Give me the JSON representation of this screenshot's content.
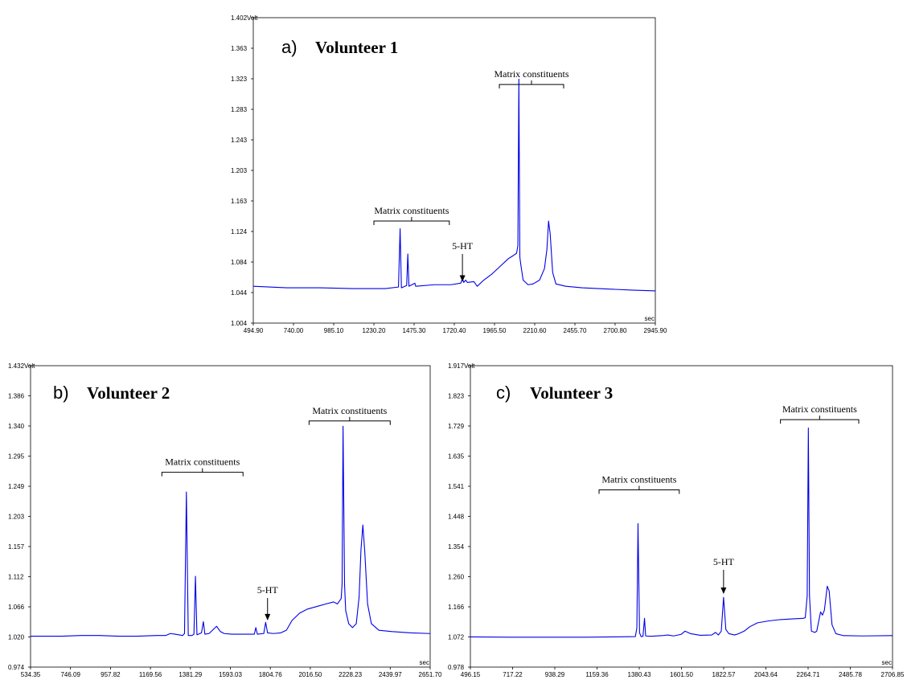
{
  "chart_data": [
    {
      "type": "line",
      "panel_label": "a)",
      "title": "Volunteer 1",
      "ylabel_unit": "Volt",
      "xlabel_unit": "sec",
      "xlim": [
        494.9,
        2945.9
      ],
      "ylim": [
        1.004,
        1.402
      ],
      "x_ticks": [
        "494.90",
        "740.00",
        "985.10",
        "1230.20",
        "1475.30",
        "1720.40",
        "1965.50",
        "2210.60",
        "2455.70",
        "2700.80",
        "2945.90"
      ],
      "y_ticks": [
        "1.004",
        "1.044",
        "1.084",
        "1.124",
        "1.163",
        "1.203",
        "1.243",
        "1.283",
        "1.323",
        "1.363",
        "1.402"
      ],
      "series": [
        {
          "color": "#0000e6",
          "points": [
            [
              494.9,
              1.052
            ],
            [
              700,
              1.05
            ],
            [
              900,
              1.05
            ],
            [
              1100,
              1.049
            ],
            [
              1300,
              1.049
            ],
            [
              1380,
              1.051
            ],
            [
              1390,
              1.127
            ],
            [
              1398,
              1.05
            ],
            [
              1430,
              1.053
            ],
            [
              1437,
              1.094
            ],
            [
              1444,
              1.052
            ],
            [
              1480,
              1.056
            ],
            [
              1485,
              1.052
            ],
            [
              1600,
              1.054
            ],
            [
              1700,
              1.054
            ],
            [
              1760,
              1.056
            ],
            [
              1770,
              1.062
            ],
            [
              1778,
              1.057
            ],
            [
              1790,
              1.06
            ],
            [
              1800,
              1.057
            ],
            [
              1840,
              1.058
            ],
            [
              1860,
              1.052
            ],
            [
              1900,
              1.06
            ],
            [
              1950,
              1.068
            ],
            [
              2000,
              1.078
            ],
            [
              2050,
              1.088
            ],
            [
              2080,
              1.092
            ],
            [
              2100,
              1.095
            ],
            [
              2108,
              1.105
            ],
            [
              2114,
              1.322
            ],
            [
              2120,
              1.09
            ],
            [
              2126,
              1.08
            ],
            [
              2140,
              1.06
            ],
            [
              2170,
              1.054
            ],
            [
              2200,
              1.055
            ],
            [
              2240,
              1.06
            ],
            [
              2270,
              1.075
            ],
            [
              2285,
              1.1
            ],
            [
              2295,
              1.137
            ],
            [
              2305,
              1.12
            ],
            [
              2320,
              1.07
            ],
            [
              2340,
              1.055
            ],
            [
              2400,
              1.052
            ],
            [
              2500,
              1.05
            ],
            [
              2600,
              1.049
            ],
            [
              2700,
              1.048
            ],
            [
              2800,
              1.047
            ],
            [
              2945.9,
              1.046
            ]
          ]
        }
      ],
      "annotations": [
        {
          "text": "Matrix constituents",
          "x_from": 1230.2,
          "x_to": 1690.0,
          "y": 1.137
        },
        {
          "text": "Matrix constituents",
          "x_from": 1995.0,
          "x_to": 2387.0,
          "y": 1.315
        },
        {
          "text": "5-HT",
          "arrow_x": 1770.0,
          "arrow_from": 1.094,
          "arrow_to": 1.058
        }
      ]
    },
    {
      "type": "line",
      "panel_label": "b)",
      "title": "Volunteer 2",
      "ylabel_unit": "Volt",
      "xlabel_unit": "sec",
      "xlim": [
        534.35,
        2651.7
      ],
      "ylim": [
        0.974,
        1.432
      ],
      "x_ticks": [
        "534.35",
        "746.09",
        "957.82",
        "1169.56",
        "1381.29",
        "1593.03",
        "1804.76",
        "2016.50",
        "2228.23",
        "2439.97",
        "2651.70"
      ],
      "y_ticks": [
        "0.974",
        "1.020",
        "1.066",
        "1.112",
        "1.157",
        "1.203",
        "1.249",
        "1.295",
        "1.340",
        "1.386",
        "1.432"
      ],
      "series": [
        {
          "color": "#0000e6",
          "points": [
            [
              534.35,
              1.021
            ],
            [
              700,
              1.021
            ],
            [
              800,
              1.022
            ],
            [
              900,
              1.022
            ],
            [
              1000,
              1.021
            ],
            [
              1100,
              1.021
            ],
            [
              1200,
              1.022
            ],
            [
              1250,
              1.022
            ],
            [
              1275,
              1.025
            ],
            [
              1300,
              1.024
            ],
            [
              1340,
              1.022
            ],
            [
              1350,
              1.025
            ],
            [
              1360,
              1.24
            ],
            [
              1370,
              1.022
            ],
            [
              1390,
              1.022
            ],
            [
              1400,
              1.024
            ],
            [
              1408,
              1.112
            ],
            [
              1416,
              1.023
            ],
            [
              1440,
              1.026
            ],
            [
              1450,
              1.043
            ],
            [
              1458,
              1.024
            ],
            [
              1480,
              1.025
            ],
            [
              1520,
              1.036
            ],
            [
              1540,
              1.028
            ],
            [
              1560,
              1.025
            ],
            [
              1600,
              1.024
            ],
            [
              1720,
              1.024
            ],
            [
              1728,
              1.034
            ],
            [
              1736,
              1.024
            ],
            [
              1770,
              1.025
            ],
            [
              1780,
              1.042
            ],
            [
              1790,
              1.026
            ],
            [
              1820,
              1.025
            ],
            [
              1860,
              1.026
            ],
            [
              1890,
              1.03
            ],
            [
              1920,
              1.045
            ],
            [
              1960,
              1.056
            ],
            [
              2000,
              1.062
            ],
            [
              2050,
              1.066
            ],
            [
              2100,
              1.07
            ],
            [
              2140,
              1.073
            ],
            [
              2160,
              1.07
            ],
            [
              2180,
              1.078
            ],
            [
              2185,
              1.1
            ],
            [
              2190,
              1.34
            ],
            [
              2198,
              1.1
            ],
            [
              2204,
              1.06
            ],
            [
              2220,
              1.04
            ],
            [
              2240,
              1.034
            ],
            [
              2260,
              1.04
            ],
            [
              2275,
              1.08
            ],
            [
              2285,
              1.152
            ],
            [
              2295,
              1.19
            ],
            [
              2305,
              1.15
            ],
            [
              2320,
              1.07
            ],
            [
              2340,
              1.04
            ],
            [
              2380,
              1.03
            ],
            [
              2450,
              1.028
            ],
            [
              2550,
              1.026
            ],
            [
              2651.7,
              1.025
            ]
          ]
        }
      ],
      "annotations": [
        {
          "text": "Matrix constituents",
          "x_from": 1230.0,
          "x_to": 1660.0,
          "y": 1.27
        },
        {
          "text": "Matrix constituents",
          "x_from": 2010.0,
          "x_to": 2440.0,
          "y": 1.348
        },
        {
          "text": "5-HT",
          "arrow_x": 1790.0,
          "arrow_from": 1.079,
          "arrow_to": 1.045
        }
      ]
    },
    {
      "type": "line",
      "panel_label": "c)",
      "title": "Volunteer 3",
      "ylabel_unit": "Volt",
      "xlabel_unit": "sec",
      "xlim": [
        496.15,
        2706.85
      ],
      "ylim": [
        0.978,
        1.917
      ],
      "x_ticks": [
        "496.15",
        "717.22",
        "938.29",
        "1159.36",
        "1380.43",
        "1601.50",
        "1822.57",
        "2043.64",
        "2264.71",
        "2485.78",
        "2706.85"
      ],
      "y_ticks": [
        "0.978",
        "1.072",
        "1.166",
        "1.260",
        "1.354",
        "1.448",
        "1.541",
        "1.635",
        "1.729",
        "1.823",
        "1.917"
      ],
      "series": [
        {
          "color": "#0000e6",
          "points": [
            [
              496.15,
              1.072
            ],
            [
              700,
              1.071
            ],
            [
              900,
              1.071
            ],
            [
              1100,
              1.071
            ],
            [
              1250,
              1.072
            ],
            [
              1360,
              1.073
            ],
            [
              1368,
              1.1
            ],
            [
              1374,
              1.425
            ],
            [
              1382,
              1.085
            ],
            [
              1390,
              1.073
            ],
            [
              1400,
              1.074
            ],
            [
              1408,
              1.13
            ],
            [
              1414,
              1.075
            ],
            [
              1440,
              1.074
            ],
            [
              1500,
              1.076
            ],
            [
              1530,
              1.078
            ],
            [
              1560,
              1.075
            ],
            [
              1600,
              1.08
            ],
            [
              1620,
              1.09
            ],
            [
              1650,
              1.082
            ],
            [
              1700,
              1.077
            ],
            [
              1760,
              1.078
            ],
            [
              1780,
              1.086
            ],
            [
              1795,
              1.078
            ],
            [
              1810,
              1.09
            ],
            [
              1822,
              1.195
            ],
            [
              1834,
              1.095
            ],
            [
              1850,
              1.082
            ],
            [
              1880,
              1.078
            ],
            [
              1900,
              1.082
            ],
            [
              1930,
              1.09
            ],
            [
              1960,
              1.104
            ],
            [
              2000,
              1.116
            ],
            [
              2060,
              1.122
            ],
            [
              2120,
              1.126
            ],
            [
              2180,
              1.128
            ],
            [
              2240,
              1.13
            ],
            [
              2250,
              1.132
            ],
            [
              2260,
              1.2
            ],
            [
              2266,
              1.723
            ],
            [
              2272,
              1.2
            ],
            [
              2282,
              1.09
            ],
            [
              2300,
              1.086
            ],
            [
              2310,
              1.09
            ],
            [
              2330,
              1.15
            ],
            [
              2340,
              1.14
            ],
            [
              2350,
              1.155
            ],
            [
              2365,
              1.23
            ],
            [
              2375,
              1.215
            ],
            [
              2390,
              1.11
            ],
            [
              2410,
              1.082
            ],
            [
              2450,
              1.076
            ],
            [
              2550,
              1.075
            ],
            [
              2706.85,
              1.076
            ]
          ]
        }
      ],
      "annotations": [
        {
          "text": "Matrix constituents",
          "x_from": 1170.0,
          "x_to": 1590.0,
          "y": 1.53
        },
        {
          "text": "Matrix constituents",
          "x_from": 2120.0,
          "x_to": 2530.0,
          "y": 1.749
        },
        {
          "text": "5-HT",
          "arrow_x": 1822.0,
          "arrow_from": 1.281,
          "arrow_to": 1.206
        }
      ]
    }
  ]
}
